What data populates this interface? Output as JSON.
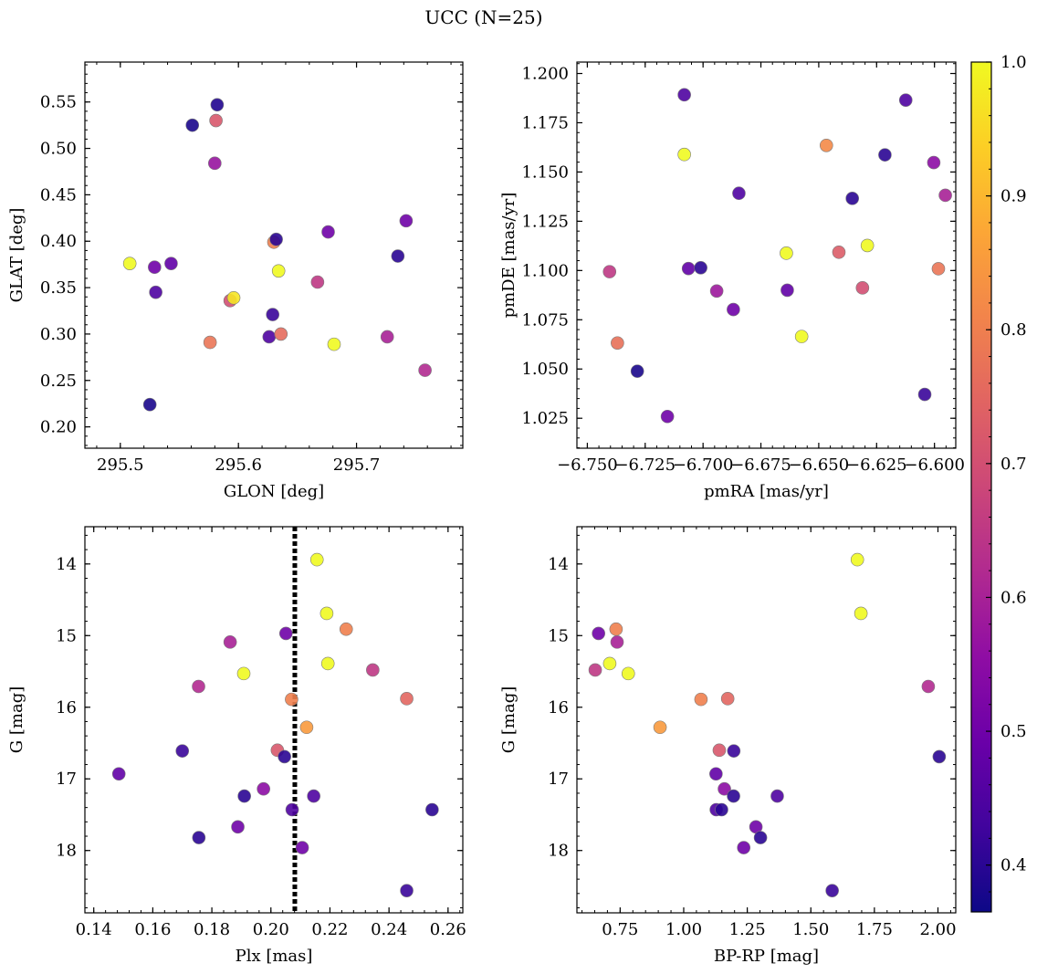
{
  "figure": {
    "title": "UCC (N=25)"
  },
  "colorbar": {
    "range": [
      0.365,
      1.0
    ],
    "ticks": [
      "0.4",
      "0.5",
      "0.6",
      "0.7",
      "0.8",
      "0.9",
      "1.0"
    ],
    "tick_values": [
      0.4,
      0.5,
      0.6,
      0.7,
      0.8,
      0.9,
      1.0
    ],
    "colormap": "plasma"
  },
  "chart_data": [
    {
      "type": "scatter",
      "xlabel": "GLON [deg]",
      "ylabel": "GLAT [deg]",
      "xlim": [
        295.47,
        295.79
      ],
      "ylim": [
        0.177,
        0.593
      ],
      "xticks": [
        295.5,
        295.6,
        295.7
      ],
      "xtick_labels": [
        "295.5",
        "295.6",
        "295.7"
      ],
      "yticks": [
        0.2,
        0.25,
        0.3,
        0.35,
        0.4,
        0.45,
        0.5,
        0.55
      ],
      "ytick_labels": [
        "0.20",
        "0.25",
        "0.30",
        "0.35",
        "0.40",
        "0.45",
        "0.50",
        "0.55"
      ],
      "points": [
        {
          "x": 295.508,
          "y": 0.376,
          "c": 1.0
        },
        {
          "x": 295.525,
          "y": 0.224,
          "c": 0.38
        },
        {
          "x": 295.529,
          "y": 0.372,
          "c": 0.5
        },
        {
          "x": 295.53,
          "y": 0.345,
          "c": 0.45
        },
        {
          "x": 295.543,
          "y": 0.376,
          "c": 0.48
        },
        {
          "x": 295.561,
          "y": 0.525,
          "c": 0.38
        },
        {
          "x": 295.576,
          "y": 0.291,
          "c": 0.78
        },
        {
          "x": 295.58,
          "y": 0.484,
          "c": 0.57
        },
        {
          "x": 295.581,
          "y": 0.53,
          "c": 0.72
        },
        {
          "x": 295.582,
          "y": 0.547,
          "c": 0.39
        },
        {
          "x": 295.593,
          "y": 0.336,
          "c": 0.7
        },
        {
          "x": 295.596,
          "y": 0.339,
          "c": 0.97
        },
        {
          "x": 295.626,
          "y": 0.297,
          "c": 0.45
        },
        {
          "x": 295.629,
          "y": 0.321,
          "c": 0.42
        },
        {
          "x": 295.63,
          "y": 0.399,
          "c": 0.8
        },
        {
          "x": 295.632,
          "y": 0.402,
          "c": 0.4
        },
        {
          "x": 295.634,
          "y": 0.368,
          "c": 1.0
        },
        {
          "x": 295.636,
          "y": 0.3,
          "c": 0.76
        },
        {
          "x": 295.667,
          "y": 0.356,
          "c": 0.65
        },
        {
          "x": 295.676,
          "y": 0.41,
          "c": 0.5
        },
        {
          "x": 295.681,
          "y": 0.289,
          "c": 1.0
        },
        {
          "x": 295.726,
          "y": 0.297,
          "c": 0.6
        },
        {
          "x": 295.735,
          "y": 0.384,
          "c": 0.4
        },
        {
          "x": 295.742,
          "y": 0.422,
          "c": 0.5
        },
        {
          "x": 295.758,
          "y": 0.261,
          "c": 0.62
        }
      ]
    },
    {
      "type": "scatter",
      "xlabel": "pmRA [mas/yr]",
      "ylabel": "pmDE [mas/yr]",
      "xlim": [
        -6.7545,
        -6.5908
      ],
      "ylim": [
        1.0098,
        1.2058
      ],
      "xticks": [
        -6.75,
        -6.725,
        -6.7,
        -6.675,
        -6.65,
        -6.625,
        -6.6
      ],
      "xtick_labels": [
        "−6.750",
        "−6.725",
        "−6.700",
        "−6.675",
        "−6.650",
        "−6.625",
        "−6.600"
      ],
      "yticks": [
        1.025,
        1.05,
        1.075,
        1.1,
        1.125,
        1.15,
        1.175,
        1.2
      ],
      "ytick_labels": [
        "1.025",
        "1.050",
        "1.075",
        "1.100",
        "1.125",
        "1.150",
        "1.175",
        "1.200"
      ],
      "points": [
        {
          "x": -6.7404,
          "y": 1.0994,
          "c": 0.65
        },
        {
          "x": -6.737,
          "y": 1.0632,
          "c": 0.77
        },
        {
          "x": -6.7284,
          "y": 1.0489,
          "c": 0.38
        },
        {
          "x": -6.7154,
          "y": 1.0259,
          "c": 0.5
        },
        {
          "x": -6.7081,
          "y": 1.1892,
          "c": 0.45
        },
        {
          "x": -6.7081,
          "y": 1.1589,
          "c": 1.0
        },
        {
          "x": -6.7063,
          "y": 1.101,
          "c": 0.48
        },
        {
          "x": -6.701,
          "y": 1.1014,
          "c": 0.4
        },
        {
          "x": -6.6941,
          "y": 1.0896,
          "c": 0.58
        },
        {
          "x": -6.6869,
          "y": 1.0802,
          "c": 0.5
        },
        {
          "x": -6.6845,
          "y": 1.1392,
          "c": 0.45
        },
        {
          "x": -6.664,
          "y": 1.1088,
          "c": 1.0
        },
        {
          "x": -6.6636,
          "y": 1.09,
          "c": 0.48
        },
        {
          "x": -6.6574,
          "y": 1.0665,
          "c": 1.0
        },
        {
          "x": -6.6467,
          "y": 1.1635,
          "c": 0.82
        },
        {
          "x": -6.6413,
          "y": 1.1093,
          "c": 0.73
        },
        {
          "x": -6.6355,
          "y": 1.1366,
          "c": 0.4
        },
        {
          "x": -6.6311,
          "y": 1.0912,
          "c": 0.7
        },
        {
          "x": -6.629,
          "y": 1.1127,
          "c": 1.0
        },
        {
          "x": -6.6214,
          "y": 1.1587,
          "c": 0.4
        },
        {
          "x": -6.6124,
          "y": 1.1865,
          "c": 0.45
        },
        {
          "x": -6.6042,
          "y": 1.0371,
          "c": 0.42
        },
        {
          "x": -6.6003,
          "y": 1.1548,
          "c": 0.55
        },
        {
          "x": -6.5983,
          "y": 1.1009,
          "c": 0.78
        },
        {
          "x": -6.5953,
          "y": 1.1382,
          "c": 0.6
        }
      ]
    },
    {
      "type": "scatter",
      "xlabel": "Plx [mas]",
      "ylabel": "G [mag]",
      "xlim": [
        0.137,
        0.265
      ],
      "ylim": [
        18.87,
        13.48
      ],
      "y_inverted": true,
      "vline": 0.2081,
      "xticks": [
        0.14,
        0.16,
        0.18,
        0.2,
        0.22,
        0.24,
        0.26
      ],
      "xtick_labels": [
        "0.14",
        "0.16",
        "0.18",
        "0.20",
        "0.22",
        "0.24",
        "0.26"
      ],
      "yticks": [
        14,
        15,
        16,
        17,
        18
      ],
      "ytick_labels": [
        "14",
        "15",
        "16",
        "17",
        "18"
      ],
      "points": [
        {
          "x": 0.1485,
          "y": 16.93,
          "c": 0.48
        },
        {
          "x": 0.17,
          "y": 16.61,
          "c": 0.42
        },
        {
          "x": 0.1755,
          "y": 15.71,
          "c": 0.62
        },
        {
          "x": 0.1756,
          "y": 17.82,
          "c": 0.4
        },
        {
          "x": 0.1862,
          "y": 15.09,
          "c": 0.6
        },
        {
          "x": 0.1888,
          "y": 17.67,
          "c": 0.5
        },
        {
          "x": 0.1908,
          "y": 15.53,
          "c": 1.0
        },
        {
          "x": 0.191,
          "y": 17.24,
          "c": 0.4
        },
        {
          "x": 0.1975,
          "y": 17.14,
          "c": 0.55
        },
        {
          "x": 0.2022,
          "y": 16.6,
          "c": 0.72
        },
        {
          "x": 0.2046,
          "y": 16.69,
          "c": 0.4
        },
        {
          "x": 0.2051,
          "y": 14.97,
          "c": 0.5
        },
        {
          "x": 0.207,
          "y": 15.89,
          "c": 0.8
        },
        {
          "x": 0.2072,
          "y": 17.43,
          "c": 0.45
        },
        {
          "x": 0.2106,
          "y": 17.96,
          "c": 0.5
        },
        {
          "x": 0.2121,
          "y": 16.28,
          "c": 0.85
        },
        {
          "x": 0.2145,
          "y": 17.24,
          "c": 0.45
        },
        {
          "x": 0.2156,
          "y": 13.94,
          "c": 1.0
        },
        {
          "x": 0.2189,
          "y": 14.69,
          "c": 1.0
        },
        {
          "x": 0.2193,
          "y": 15.39,
          "c": 1.0
        },
        {
          "x": 0.2255,
          "y": 14.91,
          "c": 0.8
        },
        {
          "x": 0.2345,
          "y": 15.48,
          "c": 0.65
        },
        {
          "x": 0.246,
          "y": 15.88,
          "c": 0.75
        },
        {
          "x": 0.246,
          "y": 18.56,
          "c": 0.42
        },
        {
          "x": 0.2546,
          "y": 17.43,
          "c": 0.4
        }
      ]
    },
    {
      "type": "scatter",
      "xlabel": "BP-RP [mag]",
      "ylabel": "G [mag]",
      "xlim": [
        0.58,
        2.07
      ],
      "ylim": [
        18.87,
        13.48
      ],
      "y_inverted": true,
      "xticks": [
        0.75,
        1.0,
        1.25,
        1.5,
        1.75,
        2.0
      ],
      "xtick_labels": [
        "0.75",
        "1.00",
        "1.25",
        "1.50",
        "1.75",
        "2.00"
      ],
      "yticks": [
        14,
        15,
        16,
        17,
        18
      ],
      "ytick_labels": [
        "14",
        "15",
        "16",
        "17",
        "18"
      ],
      "points": [
        {
          "x": 0.652,
          "y": 15.48,
          "c": 0.65
        },
        {
          "x": 0.665,
          "y": 14.97,
          "c": 0.5
        },
        {
          "x": 0.709,
          "y": 15.39,
          "c": 1.0
        },
        {
          "x": 0.734,
          "y": 14.91,
          "c": 0.8
        },
        {
          "x": 0.738,
          "y": 15.09,
          "c": 0.6
        },
        {
          "x": 0.782,
          "y": 15.53,
          "c": 1.0
        },
        {
          "x": 0.907,
          "y": 16.28,
          "c": 0.85
        },
        {
          "x": 1.068,
          "y": 15.89,
          "c": 0.8
        },
        {
          "x": 1.127,
          "y": 16.93,
          "c": 0.48
        },
        {
          "x": 1.128,
          "y": 17.43,
          "c": 0.45
        },
        {
          "x": 1.14,
          "y": 16.6,
          "c": 0.72
        },
        {
          "x": 1.149,
          "y": 17.43,
          "c": 0.4
        },
        {
          "x": 1.16,
          "y": 17.14,
          "c": 0.55
        },
        {
          "x": 1.173,
          "y": 15.88,
          "c": 0.75
        },
        {
          "x": 1.196,
          "y": 17.24,
          "c": 0.4
        },
        {
          "x": 1.197,
          "y": 16.61,
          "c": 0.42
        },
        {
          "x": 1.236,
          "y": 17.96,
          "c": 0.5
        },
        {
          "x": 1.284,
          "y": 17.67,
          "c": 0.5
        },
        {
          "x": 1.302,
          "y": 17.82,
          "c": 0.4
        },
        {
          "x": 1.368,
          "y": 17.24,
          "c": 0.45
        },
        {
          "x": 1.584,
          "y": 18.56,
          "c": 0.42
        },
        {
          "x": 1.683,
          "y": 13.94,
          "c": 1.0
        },
        {
          "x": 1.697,
          "y": 14.69,
          "c": 1.0
        },
        {
          "x": 1.962,
          "y": 15.71,
          "c": 0.62
        },
        {
          "x": 2.005,
          "y": 16.69,
          "c": 0.4
        }
      ]
    }
  ]
}
